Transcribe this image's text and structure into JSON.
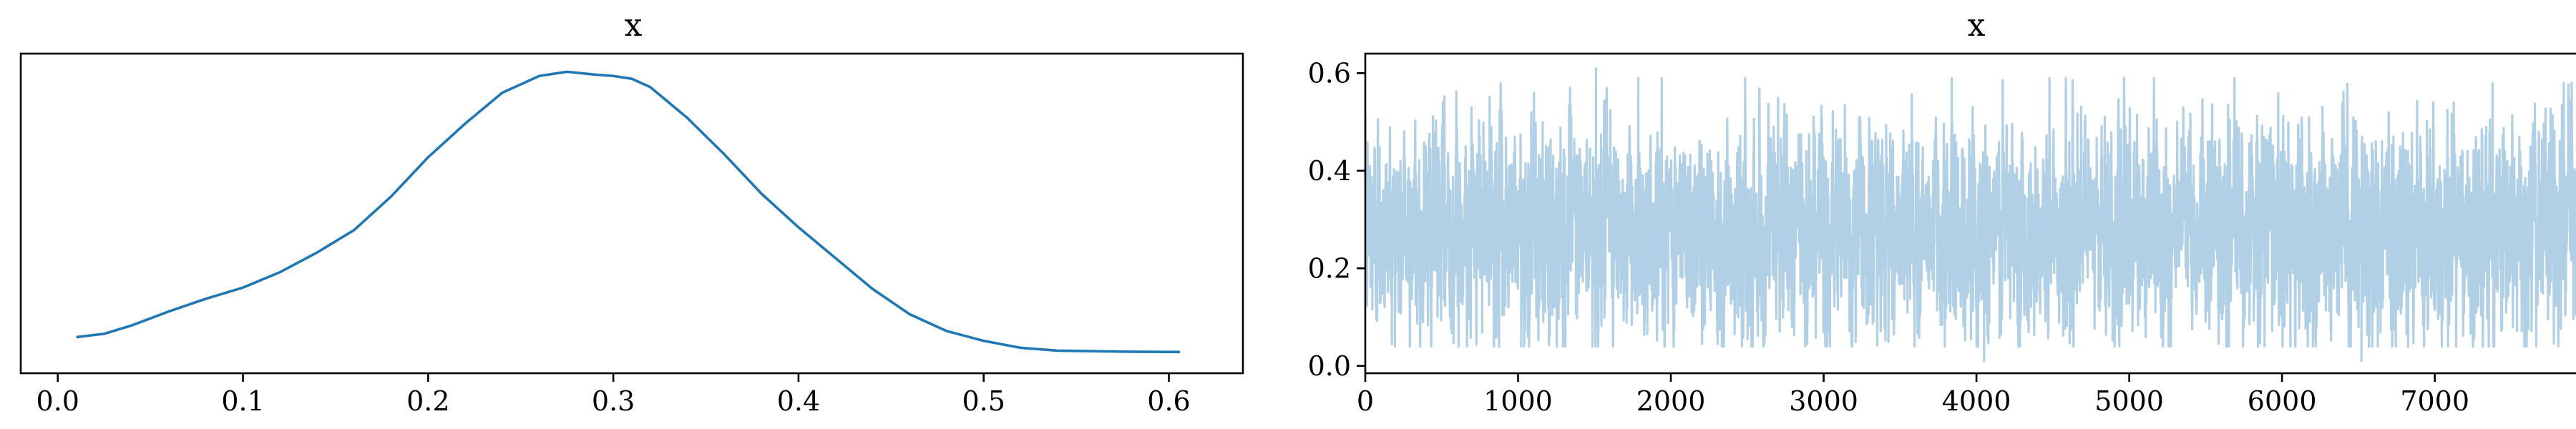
{
  "chart_data": [
    {
      "type": "line",
      "title": "x",
      "xlabel": "",
      "ylabel": "",
      "xlim": [
        -0.02,
        0.64
      ],
      "ylim": [
        0,
        1
      ],
      "grid": false,
      "legend": "none",
      "xticks": [
        0.0,
        0.1,
        0.2,
        0.3,
        0.4,
        0.5,
        0.6
      ],
      "xtick_labels": [
        "0.0",
        "0.1",
        "0.2",
        "0.3",
        "0.4",
        "0.5",
        "0.6"
      ],
      "yticks": [],
      "series": [
        {
          "color": "#1f77b4",
          "x": [
            0.01,
            0.025,
            0.04,
            0.06,
            0.08,
            0.1,
            0.12,
            0.14,
            0.16,
            0.18,
            0.2,
            0.22,
            0.24,
            0.26,
            0.275,
            0.29,
            0.3,
            0.31,
            0.32,
            0.34,
            0.36,
            0.38,
            0.4,
            0.42,
            0.44,
            0.46,
            0.48,
            0.5,
            0.52,
            0.54,
            0.56,
            0.58,
            0.606
          ],
          "y": [
            0.098,
            0.11,
            0.14,
            0.19,
            0.235,
            0.275,
            0.33,
            0.4,
            0.48,
            0.6,
            0.74,
            0.86,
            0.97,
            1.03,
            1.045,
            1.035,
            1.03,
            1.02,
            0.99,
            0.88,
            0.75,
            0.61,
            0.49,
            0.38,
            0.27,
            0.18,
            0.12,
            0.085,
            0.06,
            0.05,
            0.048,
            0.046,
            0.045
          ]
        }
      ]
    },
    {
      "type": "line",
      "title": "x",
      "xlabel": "",
      "ylabel": "",
      "xlim": [
        0,
        7999
      ],
      "ylim": [
        -0.015,
        0.64
      ],
      "grid": false,
      "legend": "none",
      "xticks": [
        0,
        1000,
        2000,
        3000,
        4000,
        5000,
        6000,
        7000
      ],
      "xtick_labels": [
        "0",
        "1000",
        "2000",
        "3000",
        "4000",
        "5000",
        "6000",
        "7000"
      ],
      "yticks": [
        0.0,
        0.2,
        0.4,
        0.6
      ],
      "ytick_labels": [
        "0.0",
        "0.2",
        "0.4",
        "0.6"
      ],
      "series": [
        {
          "color": "#1f77b4",
          "opacity": 0.35,
          "sample_count": 8000,
          "x_range": [
            0,
            7999
          ],
          "typical_range": [
            0.1,
            0.45
          ],
          "center": 0.28,
          "min": 0.01,
          "max": 0.61,
          "notable_values": [
            {
              "x": 1510,
              "y": 0.61
            },
            {
              "x": 1940,
              "y": 0.59
            },
            {
              "x": 4050,
              "y": 0.01
            },
            {
              "x": 6520,
              "y": 0.01
            },
            {
              "x": 7990,
              "y": 0.05
            }
          ]
        }
      ]
    }
  ]
}
